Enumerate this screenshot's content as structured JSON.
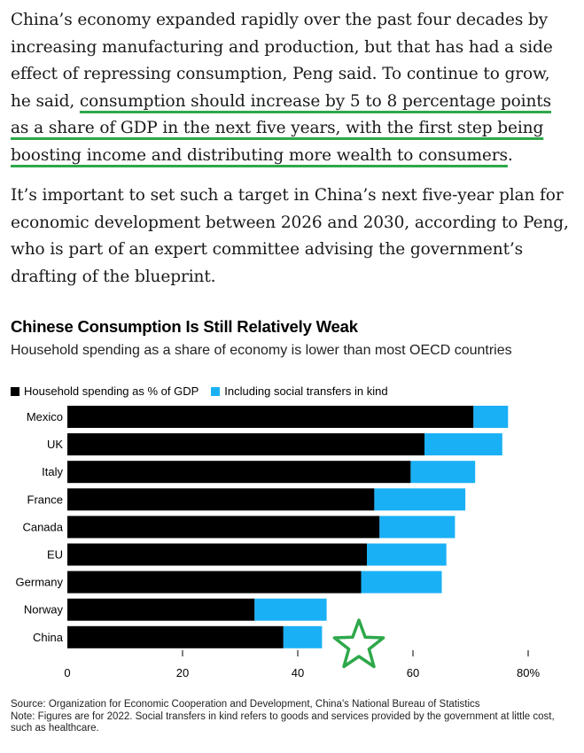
{
  "article": {
    "paragraph1_before": "China’s economy expanded rapidly over the past four decades by increasing manufacturing and production, but that has had a side effect of repressing consumption, Peng said. To continue to grow, he said, ",
    "paragraph1_underlined": "consumption should increase by 5 to 8 percentage points as a share of GDP in the next five years, with the first step being boosting income and distributing more wealth to consumers",
    "paragraph1_after": ".",
    "paragraph2": "It’s important to set such a target in China’s next five-year plan for economic development between 2026 and 2030, according to Peng, who is part of an expert committee advising the government’s drafting of the blueprint."
  },
  "chart_data": {
    "type": "bar",
    "orientation": "horizontal",
    "stacked": true,
    "title": "Chinese Consumption Is Still Relatively Weak",
    "subtitle": "Household spending as a share of economy is lower than most OECD countries",
    "categories": [
      "Mexico",
      "UK",
      "Italy",
      "France",
      "Canada",
      "EU",
      "Germany",
      "Norway",
      "China"
    ],
    "series": [
      {
        "name": "Household spending as % of GDP",
        "color": "#000000",
        "values": [
          70.5,
          62,
          59.6,
          53.3,
          54.2,
          52,
          51,
          32.5,
          37.5
        ]
      },
      {
        "name": "Including social transfers in kind",
        "color": "#1ab0f5",
        "values": [
          6,
          13.5,
          11.2,
          15.8,
          13.1,
          13.8,
          14,
          12.5,
          6.7
        ]
      }
    ],
    "xlim": [
      0,
      80
    ],
    "xticks": [
      0,
      20,
      40,
      60,
      80
    ],
    "xtick_labels": [
      "0",
      "20",
      "40",
      "60",
      "80%"
    ],
    "grid": false,
    "legend_position": "top-left",
    "annotation": {
      "type": "star",
      "color": "#2ea84a"
    },
    "source": "Source: Organization for Economic Cooperation and Development, China's National Bureau of Statistics",
    "note": "Note: Figures are for 2022. Social transfers in kind refers to goods and services provided by the government at little cost, such as healthcare."
  },
  "colors": {
    "underline": "#2ea84a",
    "household": "#000000",
    "transfers": "#1ab0f5"
  }
}
